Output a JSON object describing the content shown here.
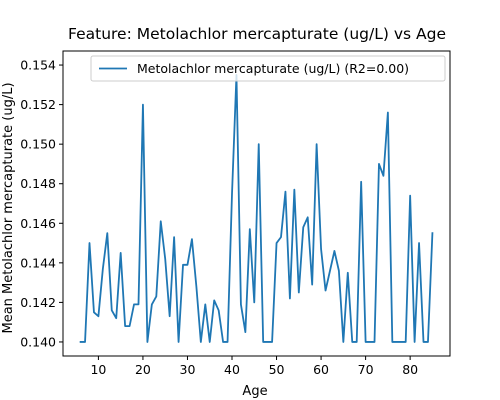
{
  "chart_data": {
    "type": "line",
    "title": "Feature: Metolachlor mercapturate (ug/L) vs Age",
    "xlabel": "Age",
    "ylabel": "Mean Metolachlor mercapturate (ug/L)",
    "xlim": [
      2.05,
      88.95
    ],
    "ylim": [
      0.13929,
      0.15471
    ],
    "xticks": [
      10,
      20,
      30,
      40,
      50,
      60,
      70,
      80
    ],
    "yticks": [
      0.14,
      0.142,
      0.144,
      0.146,
      0.148,
      0.15,
      0.152,
      0.154
    ],
    "ytick_labels": [
      "0.140",
      "0.142",
      "0.144",
      "0.146",
      "0.148",
      "0.150",
      "0.152",
      "0.154"
    ],
    "grid": false,
    "legend_position": "upper right",
    "colors": {
      "series": "#1f77b4",
      "axes": "#000000",
      "legend_border": "#cccccc"
    },
    "series": [
      {
        "name": "Metolachlor mercapturate (ug/L) (R2=0.00)",
        "x": [
          6,
          7,
          8,
          9,
          10,
          11,
          12,
          13,
          14,
          15,
          16,
          17,
          18,
          19,
          20,
          21,
          22,
          23,
          24,
          25,
          26,
          27,
          28,
          29,
          30,
          31,
          32,
          33,
          34,
          35,
          36,
          37,
          38,
          39,
          40,
          41,
          42,
          43,
          44,
          45,
          46,
          47,
          48,
          49,
          50,
          51,
          52,
          53,
          54,
          55,
          56,
          57,
          58,
          59,
          60,
          61,
          62,
          63,
          64,
          65,
          66,
          67,
          68,
          69,
          70,
          71,
          72,
          73,
          74,
          75,
          76,
          77,
          78,
          79,
          80,
          81,
          82,
          83,
          84,
          85
        ],
        "values": [
          0.14,
          0.14,
          0.145,
          0.1415,
          0.1413,
          0.1437,
          0.1455,
          0.1416,
          0.1412,
          0.1445,
          0.1408,
          0.1408,
          0.1419,
          0.1419,
          0.152,
          0.14,
          0.1419,
          0.1423,
          0.1461,
          0.1442,
          0.1413,
          0.1453,
          0.14,
          0.1439,
          0.1439,
          0.1452,
          0.1428,
          0.14,
          0.1419,
          0.14,
          0.1421,
          0.1416,
          0.14,
          0.14,
          0.1475,
          0.1535,
          0.1419,
          0.1405,
          0.1457,
          0.142,
          0.15,
          0.14,
          0.14,
          0.14,
          0.145,
          0.1453,
          0.1476,
          0.1422,
          0.1477,
          0.1425,
          0.1458,
          0.1463,
          0.1429,
          0.15,
          0.1447,
          0.1426,
          0.1436,
          0.1446,
          0.1436,
          0.14,
          0.1435,
          0.14,
          0.14,
          0.1481,
          0.14,
          0.14,
          0.14,
          0.149,
          0.1484,
          0.1516,
          0.14,
          0.14,
          0.14,
          0.14,
          0.1474,
          0.14,
          0.145,
          0.14,
          0.14,
          0.1455
        ]
      }
    ]
  }
}
